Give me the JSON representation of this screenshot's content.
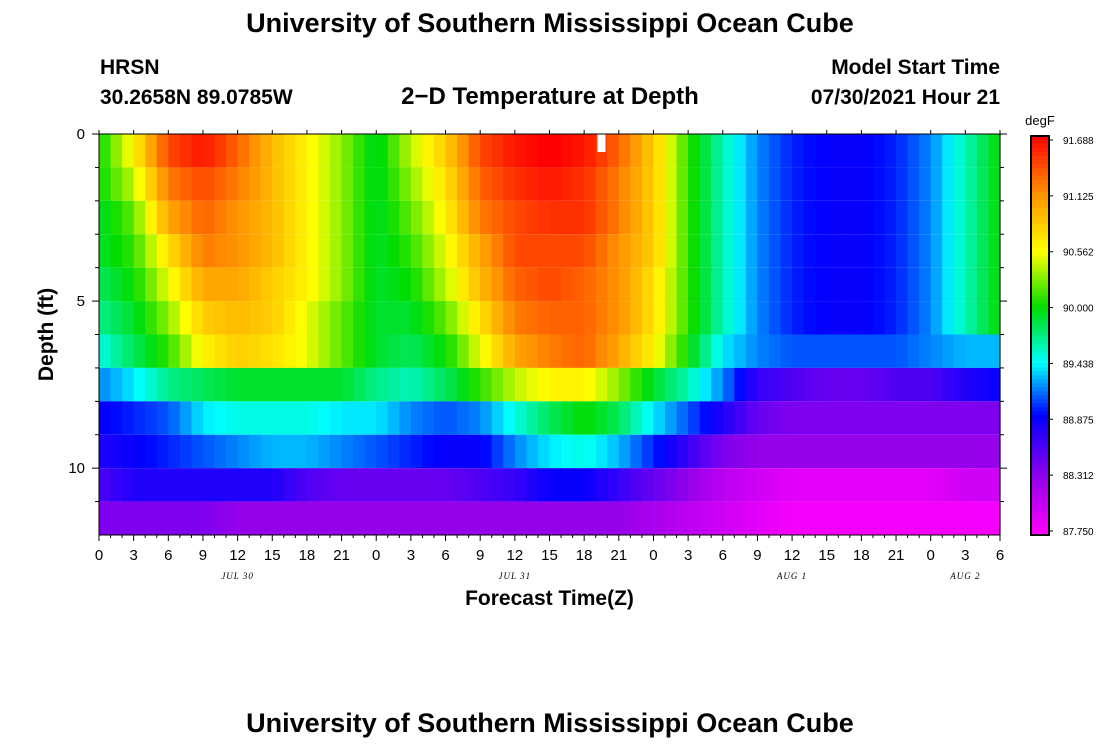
{
  "header": {
    "title": "University of Southern Mississippi Ocean Cube",
    "footer_title": "University of Southern Mississippi Ocean Cube",
    "station": "HRSN",
    "coordinates": "30.2658N  89.0785W",
    "plot_title": "2−D Temperature at Depth",
    "model_start_label": "Model Start Time",
    "model_start_value": "07/30/2021 Hour 21"
  },
  "chart_data": {
    "type": "heatmap",
    "title": "2−D Temperature at Depth",
    "xlabel": "Forecast Time(Z)",
    "ylabel": "Depth (ft)",
    "x_hours_range": [
      0,
      78
    ],
    "y_depth_range": [
      0,
      12
    ],
    "x_tick_labels": [
      "0",
      "3",
      "6",
      "9",
      "12",
      "15",
      "18",
      "21",
      "0",
      "3",
      "6",
      "9",
      "12",
      "15",
      "18",
      "21",
      "0",
      "3",
      "6",
      "9",
      "12",
      "15",
      "18",
      "21",
      "0",
      "3",
      "6"
    ],
    "y_tick_labels": [
      "0",
      "5",
      "10"
    ],
    "y_tick_values": [
      0,
      5,
      10
    ],
    "date_labels": [
      {
        "label": "JUL 30",
        "hour": 12
      },
      {
        "label": "JUL 31",
        "hour": 36
      },
      {
        "label": "AUG 1",
        "hour": 60
      },
      {
        "label": "AUG 2",
        "hour": 75
      }
    ],
    "colorbar": {
      "unit": "degF",
      "min": 87.75,
      "max": 91.688,
      "labels": [
        "91.688",
        "91.125",
        "90.562",
        "90.000",
        "89.438",
        "88.875",
        "88.312",
        "87.750"
      ]
    },
    "depth_layers_ft": [
      0.5,
      1.5,
      2.5,
      3.5,
      4.5,
      5.5,
      6.5,
      7.5,
      8.5,
      9.5,
      10.5,
      11.5
    ],
    "time_hours": [
      0,
      3,
      6,
      9,
      12,
      15,
      18,
      21,
      24,
      27,
      30,
      33,
      36,
      39,
      42,
      45,
      48,
      51,
      54,
      57,
      60,
      63,
      66,
      69,
      72,
      75,
      78
    ],
    "temperature_degF": [
      [
        90.0,
        90.6,
        91.4,
        91.6,
        91.3,
        90.9,
        90.6,
        90.3,
        89.9,
        90.4,
        90.8,
        91.4,
        91.6,
        91.7,
        91.6,
        91.3,
        90.8,
        90.1,
        89.6,
        89.2,
        89.0,
        88.9,
        88.9,
        89.0,
        89.2,
        89.6,
        90.0
      ],
      [
        90.0,
        90.4,
        91.2,
        91.4,
        91.2,
        90.9,
        90.6,
        90.3,
        89.9,
        90.3,
        90.7,
        91.3,
        91.5,
        91.6,
        91.5,
        91.2,
        90.8,
        90.1,
        89.6,
        89.2,
        89.0,
        88.9,
        88.9,
        89.0,
        89.2,
        89.6,
        90.0
      ],
      [
        89.9,
        90.2,
        91.0,
        91.3,
        91.1,
        90.9,
        90.6,
        90.3,
        89.9,
        90.2,
        90.6,
        91.2,
        91.4,
        91.5,
        91.5,
        91.2,
        90.8,
        90.1,
        89.6,
        89.2,
        89.0,
        88.9,
        88.9,
        89.0,
        89.2,
        89.6,
        90.0
      ],
      [
        89.9,
        90.1,
        90.7,
        91.2,
        91.1,
        90.9,
        90.6,
        90.3,
        89.9,
        90.1,
        90.5,
        91.0,
        91.4,
        91.4,
        91.4,
        91.1,
        90.8,
        90.1,
        89.6,
        89.2,
        89.0,
        88.9,
        88.9,
        89.0,
        89.2,
        89.6,
        90.0
      ],
      [
        89.8,
        90.0,
        90.5,
        91.0,
        91.0,
        90.8,
        90.6,
        90.3,
        89.9,
        90.0,
        90.4,
        90.9,
        91.3,
        91.4,
        91.3,
        91.1,
        90.7,
        90.1,
        89.6,
        89.2,
        89.0,
        88.9,
        88.9,
        89.0,
        89.2,
        89.6,
        90.0
      ],
      [
        89.7,
        89.9,
        90.3,
        90.8,
        90.9,
        90.8,
        90.5,
        90.2,
        89.9,
        89.9,
        90.2,
        90.7,
        91.2,
        91.3,
        91.3,
        91.1,
        90.7,
        90.1,
        89.6,
        89.2,
        89.0,
        88.9,
        88.9,
        89.0,
        89.2,
        89.6,
        90.0
      ],
      [
        89.5,
        89.8,
        90.1,
        90.6,
        90.8,
        90.7,
        90.5,
        90.2,
        89.9,
        89.8,
        90.0,
        90.5,
        91.0,
        91.2,
        91.3,
        91.0,
        90.6,
        90.0,
        89.4,
        89.2,
        89.1,
        89.1,
        89.1,
        89.1,
        89.2,
        89.3,
        89.3
      ],
      [
        89.2,
        89.4,
        89.7,
        89.8,
        89.9,
        89.9,
        89.9,
        89.9,
        89.7,
        89.6,
        89.8,
        90.1,
        90.4,
        90.6,
        90.6,
        90.3,
        89.9,
        89.6,
        89.2,
        88.7,
        88.6,
        88.5,
        88.5,
        88.6,
        88.6,
        88.8,
        88.9
      ],
      [
        88.9,
        89.0,
        89.1,
        89.4,
        89.5,
        89.5,
        89.5,
        89.4,
        89.4,
        89.2,
        89.1,
        89.2,
        89.5,
        89.8,
        90.0,
        89.8,
        89.4,
        89.1,
        88.8,
        88.5,
        88.4,
        88.4,
        88.4,
        88.4,
        88.4,
        88.4,
        88.4
      ],
      [
        88.8,
        88.9,
        89.0,
        89.1,
        89.2,
        89.3,
        89.3,
        89.2,
        89.1,
        89.0,
        88.9,
        88.9,
        89.2,
        89.4,
        89.5,
        89.3,
        89.0,
        88.7,
        88.4,
        88.3,
        88.3,
        88.3,
        88.3,
        88.3,
        88.3,
        88.3,
        88.3
      ],
      [
        88.6,
        88.8,
        88.8,
        88.8,
        88.8,
        88.8,
        88.6,
        88.5,
        88.5,
        88.5,
        88.5,
        88.6,
        88.7,
        88.9,
        88.9,
        88.7,
        88.5,
        88.3,
        88.1,
        88.0,
        87.9,
        87.9,
        87.9,
        87.9,
        87.9,
        88.0,
        88.0
      ],
      [
        88.4,
        88.4,
        88.4,
        88.4,
        88.3,
        88.3,
        88.3,
        88.3,
        88.3,
        88.3,
        88.3,
        88.3,
        88.3,
        88.3,
        88.3,
        88.3,
        88.2,
        88.1,
        88.0,
        87.9,
        87.8,
        87.8,
        87.8,
        87.8,
        87.8,
        87.8,
        87.8
      ]
    ],
    "annotations": [
      {
        "type": "now-marker",
        "hour": 43.5,
        "depth": 0
      }
    ]
  }
}
